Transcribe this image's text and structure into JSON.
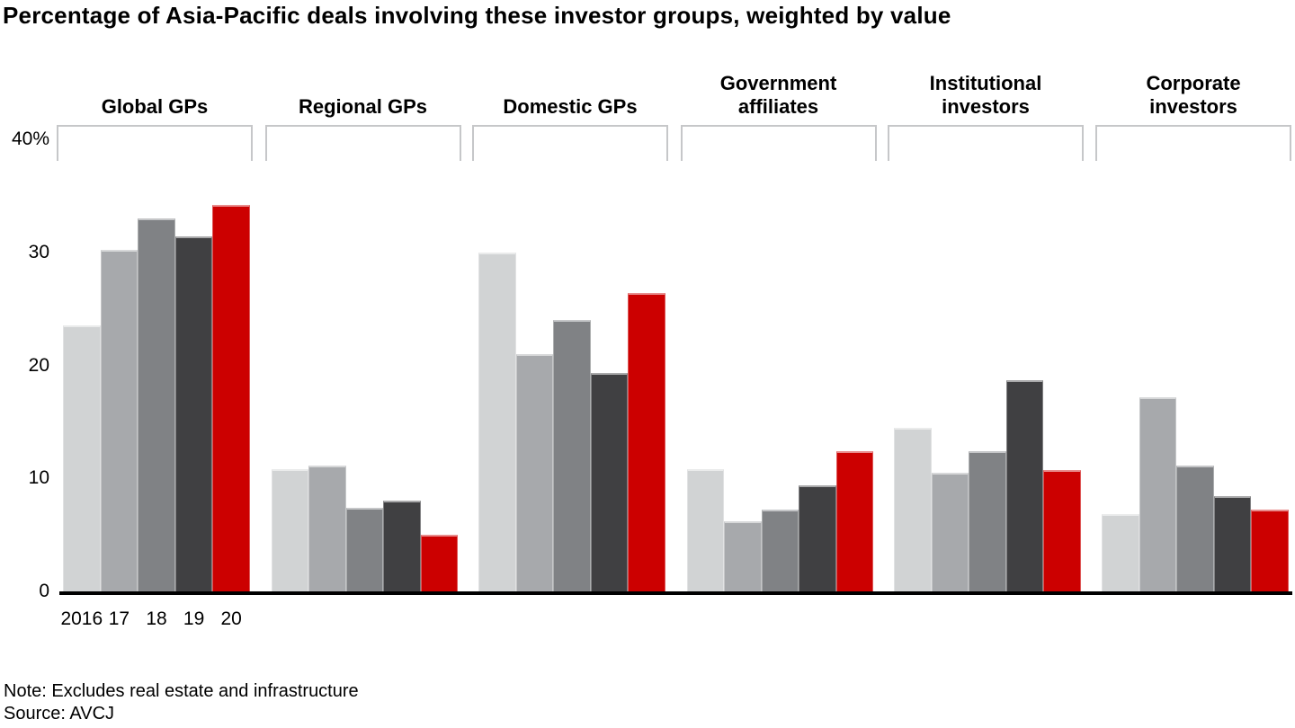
{
  "title": "Percentage of Asia-Pacific deals involving these investor groups, weighted by value",
  "chart_data": {
    "type": "bar",
    "title": "Percentage of Asia-Pacific deals involving these investor groups, weighted by value",
    "categories": [
      "Global GPs",
      "Regional GPs",
      "Domestic GPs",
      "Government affiliates",
      "Institutional investors",
      "Corporate investors"
    ],
    "category_label_lines": [
      [
        "Global GPs"
      ],
      [
        "Regional GPs"
      ],
      [
        "Domestic GPs"
      ],
      [
        "Government",
        "affiliates"
      ],
      [
        "Institutional",
        "investors"
      ],
      [
        "Corporate",
        "investors"
      ]
    ],
    "x_tick_labels": [
      "2016",
      "17",
      "18",
      "19",
      "20"
    ],
    "series": [
      {
        "name": "2016",
        "color": "#d1d3d4",
        "values": [
          23.5,
          10.8,
          30.0,
          10.8,
          14.5,
          6.8
        ]
      },
      {
        "name": "17",
        "color": "#a7a9ac",
        "values": [
          30.2,
          11.1,
          21.0,
          6.2,
          10.5,
          17.2
        ]
      },
      {
        "name": "18",
        "color": "#808285",
        "values": [
          33.0,
          7.4,
          24.0,
          7.2,
          12.4,
          11.1
        ]
      },
      {
        "name": "19",
        "color": "#404042",
        "values": [
          31.4,
          8.0,
          19.3,
          9.4,
          18.7,
          8.4
        ]
      },
      {
        "name": "20",
        "color": "#cc0000",
        "values": [
          34.2,
          5.0,
          26.4,
          12.4,
          10.7,
          7.2
        ]
      }
    ],
    "y_ticks": [
      {
        "value": 40,
        "label": "40%"
      },
      {
        "value": 30,
        "label": "30"
      },
      {
        "value": 20,
        "label": "20"
      },
      {
        "value": 10,
        "label": "10"
      },
      {
        "value": 0,
        "label": "0"
      }
    ],
    "ylim": [
      0,
      40
    ],
    "grid": false,
    "legend_position": "none",
    "axis_color": "#000000",
    "bracket_color": "#c6c7c9"
  },
  "footer": {
    "note": "Note: Excludes real estate and infrastructure",
    "source": "Source: AVCJ"
  }
}
